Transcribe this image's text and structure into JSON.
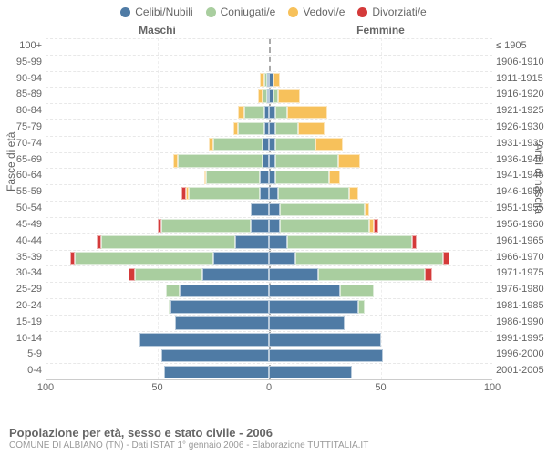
{
  "legend": [
    {
      "label": "Celibi/Nubili",
      "color": "#4f7ba5"
    },
    {
      "label": "Coniugati/e",
      "color": "#a9ce9f"
    },
    {
      "label": "Vedovi/e",
      "color": "#f7c15b"
    },
    {
      "label": "Divorziati/e",
      "color": "#d43a3a"
    }
  ],
  "header_left": "Maschi",
  "header_right": "Femmine",
  "axis_left_title": "Fasce di età",
  "axis_right_title": "Anni di nascita",
  "footer_title": "Popolazione per età, sesso e stato civile - 2006",
  "footer_sub": "COMUNE DI ALBIANO (TN) - Dati ISTAT 1° gennaio 2006 - Elaborazione TUTTITALIA.IT",
  "x_max": 100,
  "x_ticks": [
    100,
    50,
    0,
    50,
    100
  ],
  "colors": {
    "celibi": "#4f7ba5",
    "coniugati": "#a9ce9f",
    "vedovi": "#f7c15b",
    "divorziati": "#d43a3a",
    "grid": "#e8e8e8",
    "center": "#aaaaaa",
    "text": "#666666",
    "background": "#ffffff"
  },
  "rows": [
    {
      "age": "100+",
      "birth": "≤ 1905",
      "m": {
        "c": 0,
        "co": 0,
        "v": 0,
        "d": 0
      },
      "f": {
        "c": 0,
        "co": 0,
        "v": 0,
        "d": 0
      }
    },
    {
      "age": "95-99",
      "birth": "1906-1910",
      "m": {
        "c": 0,
        "co": 0,
        "v": 0,
        "d": 0
      },
      "f": {
        "c": 0,
        "co": 0,
        "v": 0,
        "d": 0
      }
    },
    {
      "age": "90-94",
      "birth": "1911-1915",
      "m": {
        "c": 1,
        "co": 1,
        "v": 2,
        "d": 0
      },
      "f": {
        "c": 2,
        "co": 0,
        "v": 3,
        "d": 0
      }
    },
    {
      "age": "85-89",
      "birth": "1916-1920",
      "m": {
        "c": 1,
        "co": 2,
        "v": 2,
        "d": 0
      },
      "f": {
        "c": 2,
        "co": 2,
        "v": 10,
        "d": 0
      }
    },
    {
      "age": "80-84",
      "birth": "1921-1925",
      "m": {
        "c": 2,
        "co": 9,
        "v": 3,
        "d": 0
      },
      "f": {
        "c": 3,
        "co": 5,
        "v": 18,
        "d": 0
      }
    },
    {
      "age": "75-79",
      "birth": "1926-1930",
      "m": {
        "c": 2,
        "co": 12,
        "v": 2,
        "d": 0
      },
      "f": {
        "c": 3,
        "co": 10,
        "v": 12,
        "d": 0
      }
    },
    {
      "age": "70-74",
      "birth": "1931-1935",
      "m": {
        "c": 3,
        "co": 22,
        "v": 2,
        "d": 0
      },
      "f": {
        "c": 3,
        "co": 18,
        "v": 12,
        "d": 0
      }
    },
    {
      "age": "65-69",
      "birth": "1936-1940",
      "m": {
        "c": 3,
        "co": 38,
        "v": 2,
        "d": 0
      },
      "f": {
        "c": 3,
        "co": 28,
        "v": 10,
        "d": 0
      }
    },
    {
      "age": "60-64",
      "birth": "1941-1945",
      "m": {
        "c": 4,
        "co": 24,
        "v": 1,
        "d": 0
      },
      "f": {
        "c": 3,
        "co": 24,
        "v": 5,
        "d": 0
      }
    },
    {
      "age": "55-59",
      "birth": "1946-1950",
      "m": {
        "c": 4,
        "co": 32,
        "v": 1,
        "d": 2
      },
      "f": {
        "c": 4,
        "co": 32,
        "v": 4,
        "d": 0
      }
    },
    {
      "age": "50-54",
      "birth": "1951-1955",
      "m": {
        "c": 8,
        "co": 0,
        "v": 0,
        "d": 0
      },
      "f": {
        "c": 5,
        "co": 38,
        "v": 2,
        "d": 0
      }
    },
    {
      "age": "45-49",
      "birth": "1956-1960",
      "m": {
        "c": 8,
        "co": 40,
        "v": 0,
        "d": 2
      },
      "f": {
        "c": 5,
        "co": 40,
        "v": 2,
        "d": 2
      }
    },
    {
      "age": "40-44",
      "birth": "1961-1965",
      "m": {
        "c": 15,
        "co": 60,
        "v": 0,
        "d": 2
      },
      "f": {
        "c": 8,
        "co": 56,
        "v": 0,
        "d": 2
      }
    },
    {
      "age": "35-39",
      "birth": "1966-1970",
      "m": {
        "c": 25,
        "co": 62,
        "v": 0,
        "d": 2
      },
      "f": {
        "c": 12,
        "co": 66,
        "v": 0,
        "d": 3
      }
    },
    {
      "age": "30-34",
      "birth": "1971-1975",
      "m": {
        "c": 30,
        "co": 30,
        "v": 0,
        "d": 3
      },
      "f": {
        "c": 22,
        "co": 48,
        "v": 0,
        "d": 3
      }
    },
    {
      "age": "25-29",
      "birth": "1976-1980",
      "m": {
        "c": 40,
        "co": 6,
        "v": 0,
        "d": 0
      },
      "f": {
        "c": 32,
        "co": 15,
        "v": 0,
        "d": 0
      }
    },
    {
      "age": "20-24",
      "birth": "1981-1985",
      "m": {
        "c": 44,
        "co": 1,
        "v": 0,
        "d": 0
      },
      "f": {
        "c": 40,
        "co": 3,
        "v": 0,
        "d": 0
      }
    },
    {
      "age": "15-19",
      "birth": "1986-1990",
      "m": {
        "c": 42,
        "co": 0,
        "v": 0,
        "d": 0
      },
      "f": {
        "c": 34,
        "co": 0,
        "v": 0,
        "d": 0
      }
    },
    {
      "age": "10-14",
      "birth": "1991-1995",
      "m": {
        "c": 58,
        "co": 0,
        "v": 0,
        "d": 0
      },
      "f": {
        "c": 50,
        "co": 0,
        "v": 0,
        "d": 0
      }
    },
    {
      "age": "5-9",
      "birth": "1996-2000",
      "m": {
        "c": 48,
        "co": 0,
        "v": 0,
        "d": 0
      },
      "f": {
        "c": 51,
        "co": 0,
        "v": 0,
        "d": 0
      }
    },
    {
      "age": "0-4",
      "birth": "2001-2005",
      "m": {
        "c": 47,
        "co": 0,
        "v": 0,
        "d": 0
      },
      "f": {
        "c": 37,
        "co": 0,
        "v": 0,
        "d": 0
      }
    }
  ]
}
